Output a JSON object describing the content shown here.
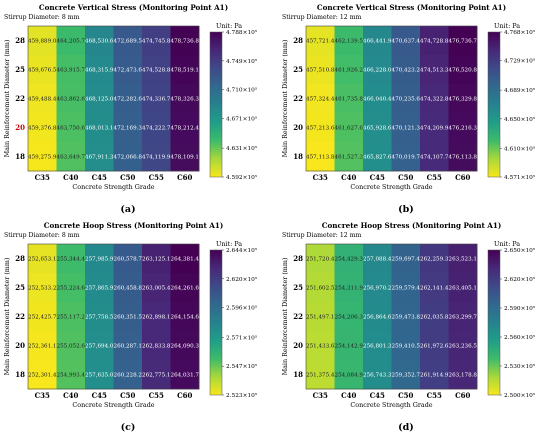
{
  "chart_data": [
    {
      "type": "heatmap",
      "panel_label": "(a)",
      "title": "Concrete Vertical Stress (Monitoring Point A1)",
      "subtitle": "Stirrup Diameter: 8 mm",
      "xlabel": "Concrete Strength Grade",
      "ylabel": "Main Reinforcement Diameter (mm)",
      "x_categories": [
        "C35",
        "C40",
        "C45",
        "C50",
        "C55",
        "C60"
      ],
      "y_categories": [
        "28",
        "25",
        "22",
        "20",
        "18"
      ],
      "values": [
        [
          459889.0,
          464205.7,
          468530.6,
          472689.5,
          474745.8,
          478736.8
        ],
        [
          459676.5,
          463915.7,
          468315.9,
          472473.6,
          474528.8,
          478519.1
        ],
        [
          459488.4,
          463862.6,
          468125.0,
          472282.6,
          474336.7,
          478326.3
        ],
        [
          459376.8,
          463750.6,
          468013.1,
          472169.3,
          474222.7,
          478212.4
        ],
        [
          459275.9,
          463649.7,
          467911.3,
          472066.8,
          474119.9,
          478109.1
        ]
      ],
      "cell_labels": [
        [
          "459,889.0",
          "464,205.7",
          "468,530.6",
          "472,689.5",
          "474,745.8",
          "478,736.8"
        ],
        [
          "459,676.5",
          "463,915.7",
          "468,315.9",
          "472,473.6",
          "474,528.8",
          "478,519.1"
        ],
        [
          "459,488.4",
          "463,862.6",
          "468,125.0",
          "472,282.6",
          "474,336.7",
          "478,326.3"
        ],
        [
          "459,376.8",
          "463,750.6",
          "468,013.1",
          "472,169.3",
          "474,222.7",
          "478,212.4"
        ],
        [
          "459,275.9",
          "463,649.7",
          "467,911.3",
          "472,066.8",
          "474,119.9",
          "478,109.1"
        ]
      ],
      "colorbar": {
        "title": "Unit: Pa",
        "min": 459200,
        "max": 478800,
        "ticks": [
          459200,
          463100,
          467100,
          471000,
          474900,
          478800
        ],
        "tick_labels": [
          "4.592×10⁵",
          "4.631×10⁵",
          "4.671×10⁵",
          "4.710×10⁵",
          "4.749×10⁵",
          "4.788×10⁵"
        ]
      }
    },
    {
      "type": "heatmap",
      "panel_label": "(b)",
      "title": "Concrete Vertical Stress (Monitoring Point A1)",
      "subtitle": "Stirrup Diameter: 12 mm",
      "xlabel": "Concrete Strength Grade",
      "ylabel": "Main Reinforcement Diameter (mm)",
      "x_categories": [
        "C35",
        "C40",
        "C45",
        "C50",
        "C55",
        "C60"
      ],
      "y_categories": [
        "28",
        "25",
        "22",
        "20",
        "18"
      ],
      "values": [
        [
          457721.4,
          462139.5,
          466441.9,
          470637.4,
          474728.8,
          476736.7
        ],
        [
          457510.8,
          461926.2,
          466228.0,
          470423.2,
          474513.3,
          476520.8
        ],
        [
          457324.4,
          461735.8,
          466040.4,
          470235.6,
          474322.8,
          476329.8
        ],
        [
          457213.6,
          461627.6,
          465928.6,
          470121.3,
          474209.9,
          476216.3
        ],
        [
          457113.8,
          461527.3,
          465827.6,
          470019.7,
          474107.7,
          476113.8
        ]
      ],
      "cell_labels": [
        [
          "457,721.4",
          "462,139.5",
          "466,441.9",
          "470,637.4",
          "474,728.8",
          "476,736.7"
        ],
        [
          "457,510.8",
          "461,926.2",
          "466,228.0",
          "470,423.2",
          "474,513.3",
          "476,520.8"
        ],
        [
          "457,324.4",
          "461,735.8",
          "466,040.4",
          "470,235.6",
          "474,322.8",
          "476,329.8"
        ],
        [
          "457,213.6",
          "461,627.6",
          "465,928.6",
          "470,121.3",
          "474,209.9",
          "476,216.3"
        ],
        [
          "457,113.8",
          "461,527.3",
          "465,827.6",
          "470,019.7",
          "474,107.7",
          "476,113.8"
        ]
      ],
      "colorbar": {
        "title": "Unit: Pa",
        "min": 457100,
        "max": 476800,
        "ticks": [
          457100,
          461000,
          465000,
          468900,
          472900,
          476800
        ],
        "tick_labels": [
          "4.571×10⁵",
          "4.610×10⁵",
          "4.650×10⁵",
          "4.689×10⁵",
          "4.729×10⁵",
          "4.768×10⁵"
        ]
      }
    },
    {
      "type": "heatmap",
      "panel_label": "(c)",
      "title": "Concrete Hoop Stress (Monitoring Point A1)",
      "subtitle": "Stirrup Diameter: 8 mm",
      "xlabel": "Concrete Strength Grade",
      "ylabel": "Main Reinforcement Diameter (mm)",
      "x_categories": [
        "C35",
        "C40",
        "C45",
        "C50",
        "C55",
        "C60"
      ],
      "y_categories": [
        "28",
        "25",
        "22",
        "20",
        "18"
      ],
      "values": [
        [
          252653.1,
          255344.4,
          257985.9,
          260578.7,
          263125.1,
          264381.4
        ],
        [
          252533.2,
          255224.6,
          257865.9,
          260458.8,
          263005.4,
          264261.6
        ],
        [
          252425.7,
          255117.2,
          257758.5,
          260351.5,
          262898.1,
          264154.6
        ],
        [
          252361.1,
          255052.6,
          257694.0,
          260287.1,
          262833.8,
          264090.3
        ],
        [
          252301.4,
          254993.4,
          257635.0,
          260228.2,
          262775.1,
          264031.7
        ]
      ],
      "cell_labels": [
        [
          "252,653.1",
          "255,344.4",
          "257,985.9",
          "260,578.7",
          "263,125.1",
          "264,381.4"
        ],
        [
          "252,533.2",
          "255,224.6",
          "257,865.9",
          "260,458.8",
          "263,005.4",
          "264,261.6"
        ],
        [
          "252,425.7",
          "255,117.2",
          "257,758.5",
          "260,351.5",
          "262,898.1",
          "264,154.6"
        ],
        [
          "252,361.1",
          "255,052.6",
          "257,694.0",
          "260,287.1",
          "262,833.8",
          "264,090.3"
        ],
        [
          "252,301.4",
          "254,993.4",
          "257,635.0",
          "260,228.2",
          "262,775.1",
          "264,031.7"
        ]
      ],
      "colorbar": {
        "title": "Unit: Pa",
        "min": 252300,
        "max": 264400,
        "ticks": [
          252300,
          254700,
          257100,
          259600,
          262000,
          264400
        ],
        "tick_labels": [
          "2.523×10⁵",
          "2.547×10⁵",
          "2.571×10⁵",
          "2.596×10⁵",
          "2.620×10⁵",
          "2.644×10⁵"
        ]
      }
    },
    {
      "type": "heatmap",
      "panel_label": "(d)",
      "title": "Concrete Hoop Stress (Monitoring Point A1)",
      "subtitle": "Stirrup Diameter: 12 mm",
      "xlabel": "Concrete Strength Grade",
      "ylabel": "Main Reinforcement Diameter (mm)",
      "x_categories": [
        "C35",
        "C40",
        "C45",
        "C50",
        "C55",
        "C60"
      ],
      "y_categories": [
        "28",
        "25",
        "22",
        "20",
        "18"
      ],
      "values": [
        [
          251720.4,
          254429.3,
          257088.4,
          259697.4,
          262259.3,
          263523.1
        ],
        [
          251602.5,
          254311.9,
          256970.2,
          259579.4,
          262141.4,
          263405.1
        ],
        [
          251497.1,
          254206.3,
          256864.6,
          259473.8,
          262035.8,
          263299.7
        ],
        [
          251433.6,
          254142.9,
          256801.3,
          259410.5,
          261972.6,
          263236.5
        ],
        [
          251375.4,
          254084.9,
          256743.3,
          259352.7,
          261914.9,
          263178.8
        ]
      ],
      "cell_labels": [
        [
          "251,720.4",
          "254,429.3",
          "257,088.4",
          "259,697.4",
          "262,259.3",
          "263,523.1"
        ],
        [
          "251,602.5",
          "254,311.9",
          "256,970.2",
          "259,579.4",
          "262,141.4",
          "263,405.1"
        ],
        [
          "251,497.1",
          "254,206.3",
          "256,864.6",
          "259,473.8",
          "262,035.8",
          "263,299.7"
        ],
        [
          "251,433.6",
          "254,142.9",
          "256,801.3",
          "259,410.5",
          "261,972.6",
          "263,236.5"
        ],
        [
          "251,375.4",
          "254,084.9",
          "256,743.3",
          "259,352.7",
          "261,914.9",
          "263,178.8"
        ]
      ],
      "colorbar": {
        "title": "Unit: Pa",
        "min": 250000,
        "max": 265000,
        "ticks": [
          250000,
          253000,
          256000,
          259000,
          262000,
          265000
        ],
        "tick_labels": [
          "2.500×10⁵",
          "2.530×10⁵",
          "2.560×10⁵",
          "2.590×10⁵",
          "2.620×10⁵",
          "2.650×10⁵"
        ]
      }
    }
  ],
  "colormap": [
    "#f8e71c",
    "#a8d83a",
    "#3dbb6a",
    "#1f9e89",
    "#26828e",
    "#31688e",
    "#3e4a89",
    "#482878",
    "#440154"
  ],
  "highlight_color": "#cc0000"
}
